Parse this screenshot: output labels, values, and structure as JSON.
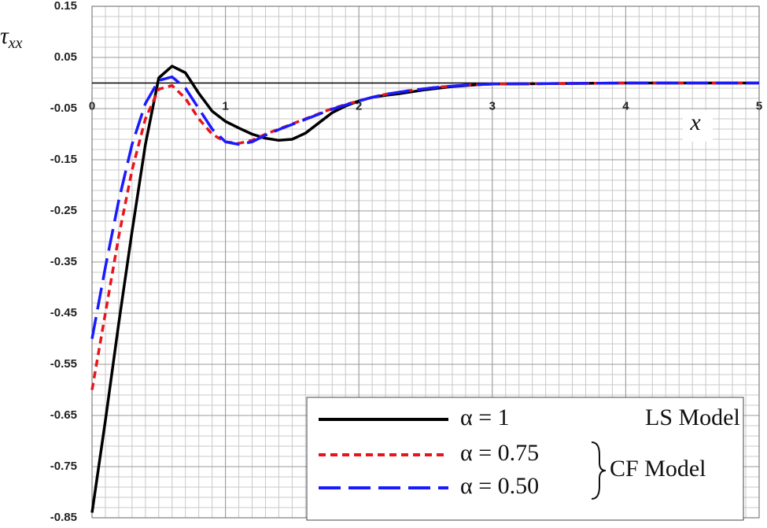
{
  "chart_data": {
    "type": "line",
    "ylabel": "τ",
    "ylabel_subscript": "xx",
    "xlabel": "x",
    "x": [
      0,
      0.1,
      0.2,
      0.3,
      0.4,
      0.5,
      0.6,
      0.7,
      0.8,
      0.9,
      1.0,
      1.1,
      1.2,
      1.3,
      1.4,
      1.5,
      1.6,
      1.7,
      1.8,
      1.9,
      2.0,
      2.1,
      2.2,
      2.3,
      2.4,
      2.5,
      2.6,
      2.7,
      2.8,
      2.9,
      3.0,
      3.5,
      4,
      4.5,
      5
    ],
    "series": [
      {
        "name": "α = 1",
        "color": "#000000",
        "dash": "solid",
        "values": [
          -0.84,
          -0.66,
          -0.47,
          -0.29,
          -0.12,
          0.01,
          0.033,
          0.02,
          -0.02,
          -0.055,
          -0.075,
          -0.088,
          -0.1,
          -0.108,
          -0.112,
          -0.11,
          -0.098,
          -0.078,
          -0.058,
          -0.045,
          -0.035,
          -0.028,
          -0.024,
          -0.021,
          -0.017,
          -0.013,
          -0.01,
          -0.007,
          -0.005,
          -0.003,
          -0.002,
          -0.001,
          0,
          0,
          0
        ]
      },
      {
        "name": "α = 0.75",
        "color": "#e8141b",
        "dash": "short",
        "values": [
          -0.6,
          -0.45,
          -0.3,
          -0.17,
          -0.07,
          -0.012,
          -0.005,
          -0.03,
          -0.07,
          -0.1,
          -0.115,
          -0.118,
          -0.112,
          -0.1,
          -0.09,
          -0.08,
          -0.07,
          -0.06,
          -0.05,
          -0.042,
          -0.035,
          -0.028,
          -0.022,
          -0.018,
          -0.014,
          -0.011,
          -0.008,
          -0.006,
          -0.004,
          -0.003,
          -0.002,
          -0.001,
          0,
          0,
          0
        ]
      },
      {
        "name": "α = 0.50",
        "color": "#1a1aff",
        "dash": "long",
        "values": [
          -0.5,
          -0.36,
          -0.23,
          -0.12,
          -0.04,
          0.005,
          0.012,
          -0.01,
          -0.05,
          -0.09,
          -0.115,
          -0.12,
          -0.115,
          -0.102,
          -0.091,
          -0.081,
          -0.071,
          -0.061,
          -0.051,
          -0.043,
          -0.035,
          -0.028,
          -0.022,
          -0.018,
          -0.014,
          -0.011,
          -0.008,
          -0.006,
          -0.004,
          -0.003,
          -0.002,
          -0.001,
          0,
          0,
          0
        ]
      }
    ],
    "annotations": [
      "LS Model",
      "CF Model"
    ],
    "xlim": [
      0,
      5
    ],
    "ylim": [
      -0.85,
      0.15
    ],
    "xticks": [
      0,
      1,
      2,
      3,
      4,
      5
    ],
    "yticks": [
      0.15,
      0.05,
      -0.05,
      -0.15,
      -0.25,
      -0.35,
      -0.45,
      -0.55,
      -0.65,
      -0.75,
      -0.85
    ],
    "grid": true,
    "x_minor_step": 0.1,
    "y_minor_step": 0.02
  }
}
